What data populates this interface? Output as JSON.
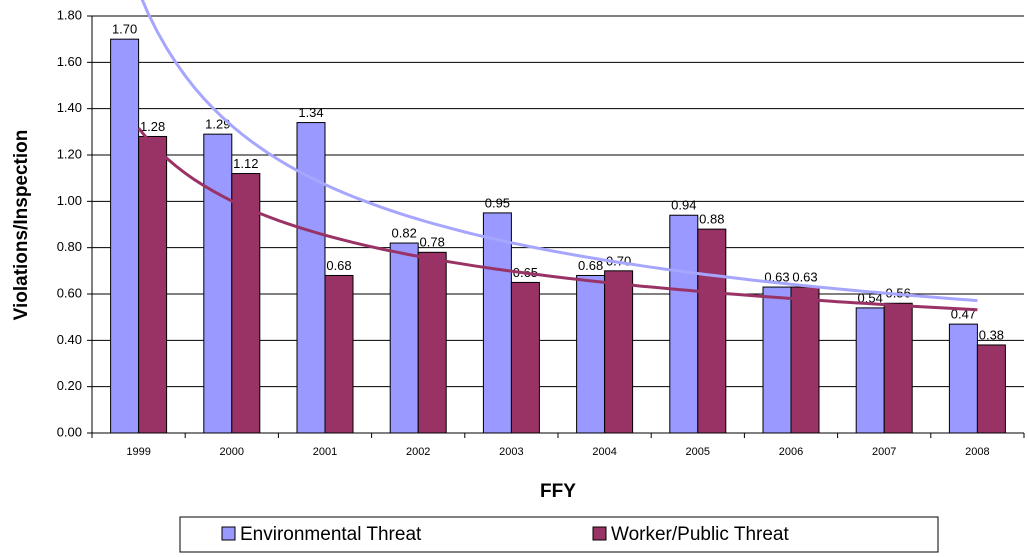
{
  "chart_data": {
    "type": "bar",
    "x_label": "FFY",
    "y_label": "Violations/Inspection",
    "categories": [
      "1999",
      "2000",
      "2001",
      "2002",
      "2003",
      "2004",
      "2005",
      "2006",
      "2007",
      "2008"
    ],
    "series": [
      {
        "name": "Environmental Threat",
        "color": "#9999ff",
        "values": [
          1.7,
          1.29,
          1.34,
          0.82,
          0.95,
          0.68,
          0.94,
          0.63,
          0.54,
          0.47
        ],
        "value_labels": [
          "1.70",
          "1.29",
          "1.34",
          "0.82",
          "0.95",
          "0.68",
          "0.94",
          "0.63",
          "0.54",
          "0.47"
        ],
        "trend_color": "#a6a6ff"
      },
      {
        "name": "Worker/Public Threat",
        "color": "#993366",
        "values": [
          1.28,
          1.12,
          0.68,
          0.78,
          0.65,
          0.7,
          0.88,
          0.63,
          0.56,
          0.38
        ],
        "value_labels": [
          "1.28",
          "1.12",
          "0.68",
          "0.78",
          "0.65",
          "0.70",
          "0.88",
          "0.63",
          "0.56",
          "0.38"
        ],
        "trend_color": "#993366"
      }
    ],
    "trendline": "power",
    "ylim": [
      0,
      1.8
    ],
    "yticks": [
      {
        "value": 0,
        "label": "0.00"
      },
      {
        "value": 0.2,
        "label": "0.20"
      },
      {
        "value": 0.4,
        "label": "0.40"
      },
      {
        "value": 0.6,
        "label": "0.60"
      },
      {
        "value": 0.8,
        "label": "0.80"
      },
      {
        "value": 1.0,
        "label": "1.00"
      },
      {
        "value": 1.2,
        "label": "1.20"
      },
      {
        "value": 1.4,
        "label": "1.40"
      },
      {
        "value": 1.6,
        "label": "1.60"
      },
      {
        "value": 1.8,
        "label": "1.80"
      }
    ],
    "grid": true,
    "legend": "bottom"
  }
}
